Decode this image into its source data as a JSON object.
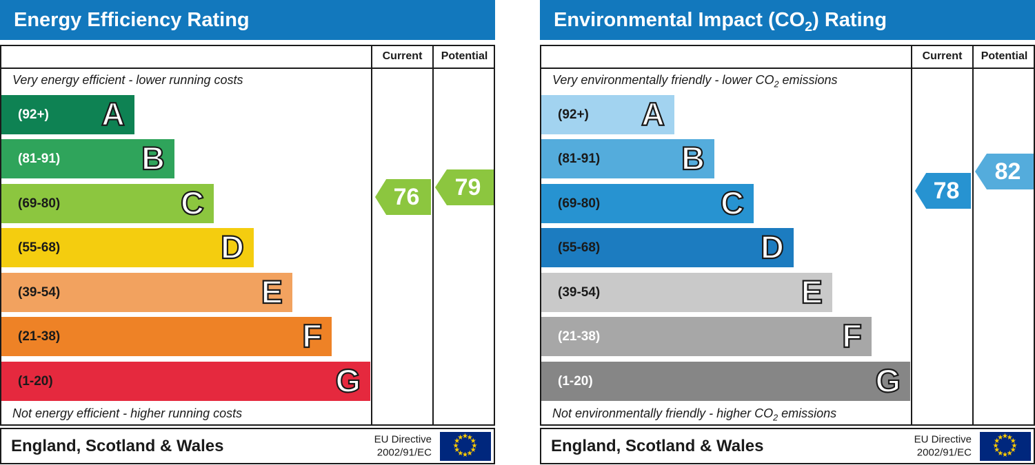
{
  "chart_data": [
    {
      "type": "bar",
      "title": "Energy Efficiency Rating",
      "categories": [
        "A (92+)",
        "B (81-91)",
        "C (69-80)",
        "D (55-68)",
        "E (39-54)",
        "F (21-38)",
        "G (1-20)"
      ],
      "series": [
        {
          "name": "Current",
          "values": [
            76
          ]
        },
        {
          "name": "Potential",
          "values": [
            79
          ]
        }
      ],
      "notes": [
        "Very energy efficient - lower running costs",
        "Not energy efficient - higher running costs"
      ],
      "region": "England, Scotland & Wales"
    },
    {
      "type": "bar",
      "title": "Environmental Impact (CO₂) Rating",
      "categories": [
        "A (92+)",
        "B (81-91)",
        "C (69-80)",
        "D (55-68)",
        "E (39-54)",
        "F (21-38)",
        "G (1-20)"
      ],
      "series": [
        {
          "name": "Current",
          "values": [
            78
          ]
        },
        {
          "name": "Potential",
          "values": [
            82
          ]
        }
      ],
      "notes": [
        "Very environmentally friendly - lower CO₂ emissions",
        "Not environmentally friendly - higher CO₂ emissions"
      ],
      "region": "England, Scotland & Wales"
    }
  ],
  "panels": [
    {
      "title": {
        "pre": "Energy Efficiency Rating",
        "sub": "",
        "post": ""
      },
      "header_color": "#1278bd",
      "col_current": "Current",
      "col_potential": "Potential",
      "top_note": {
        "pre": "Very energy efficient - lower running costs",
        "sub": "",
        "post": ""
      },
      "bottom_note": {
        "pre": "Not energy efficient - higher running costs",
        "sub": "",
        "post": ""
      },
      "bands": [
        {
          "letter": "A",
          "range": "(92+)",
          "min": 92,
          "max": 100,
          "color": "#0e8253",
          "text": "#ffffff"
        },
        {
          "letter": "B",
          "range": "(81-91)",
          "min": 81,
          "max": 91,
          "color": "#2fa45b",
          "text": "#ffffff"
        },
        {
          "letter": "C",
          "range": "(69-80)",
          "min": 69,
          "max": 80,
          "color": "#8cc63f",
          "text": "#1a1a1a"
        },
        {
          "letter": "D",
          "range": "(55-68)",
          "min": 55,
          "max": 68,
          "color": "#f4cd0f",
          "text": "#1a1a1a"
        },
        {
          "letter": "E",
          "range": "(39-54)",
          "min": 39,
          "max": 54,
          "color": "#f2a25f",
          "text": "#1a1a1a"
        },
        {
          "letter": "F",
          "range": "(21-38)",
          "min": 21,
          "max": 38,
          "color": "#ee8226",
          "text": "#1a1a1a"
        },
        {
          "letter": "G",
          "range": "(1-20)",
          "min": 1,
          "max": 20,
          "color": "#e5293e",
          "text": "#1a1a1a"
        }
      ],
      "current": {
        "value": 76,
        "color": "#8cc63f"
      },
      "potential": {
        "value": 79,
        "color": "#8cc63f"
      },
      "footer": {
        "region": "England, Scotland & Wales",
        "directive1": "EU Directive",
        "directive2": "2002/91/EC",
        "flag_bg": "#00277d",
        "flag_star": "#ffcc00"
      }
    },
    {
      "title": {
        "pre": "Environmental Impact (CO",
        "sub": "2",
        "post": ") Rating"
      },
      "header_color": "#1278bd",
      "col_current": "Current",
      "col_potential": "Potential",
      "top_note": {
        "pre": "Very environmentally friendly - lower CO",
        "sub": "2",
        "post": " emissions"
      },
      "bottom_note": {
        "pre": "Not environmentally friendly - higher CO",
        "sub": "2",
        "post": " emissions"
      },
      "bands": [
        {
          "letter": "A",
          "range": "(92+)",
          "min": 92,
          "max": 100,
          "color": "#a2d3f0",
          "text": "#1a1a1a"
        },
        {
          "letter": "B",
          "range": "(81-91)",
          "min": 81,
          "max": 91,
          "color": "#54acdc",
          "text": "#1a1a1a"
        },
        {
          "letter": "C",
          "range": "(69-80)",
          "min": 69,
          "max": 80,
          "color": "#2793d1",
          "text": "#1a1a1a"
        },
        {
          "letter": "D",
          "range": "(55-68)",
          "min": 55,
          "max": 68,
          "color": "#1c7cc0",
          "text": "#1a1a1a"
        },
        {
          "letter": "E",
          "range": "(39-54)",
          "min": 39,
          "max": 54,
          "color": "#c9c9c9",
          "text": "#1a1a1a"
        },
        {
          "letter": "F",
          "range": "(21-38)",
          "min": 21,
          "max": 38,
          "color": "#a7a7a7",
          "text": "#ffffff"
        },
        {
          "letter": "G",
          "range": "(1-20)",
          "min": 1,
          "max": 20,
          "color": "#868686",
          "text": "#ffffff"
        }
      ],
      "current": {
        "value": 78,
        "color": "#2793d1"
      },
      "potential": {
        "value": 82,
        "color": "#54acdc"
      },
      "footer": {
        "region": "England, Scotland & Wales",
        "directive1": "EU Directive",
        "directive2": "2002/91/EC",
        "flag_bg": "#00277d",
        "flag_star": "#ffcc00"
      }
    }
  ]
}
